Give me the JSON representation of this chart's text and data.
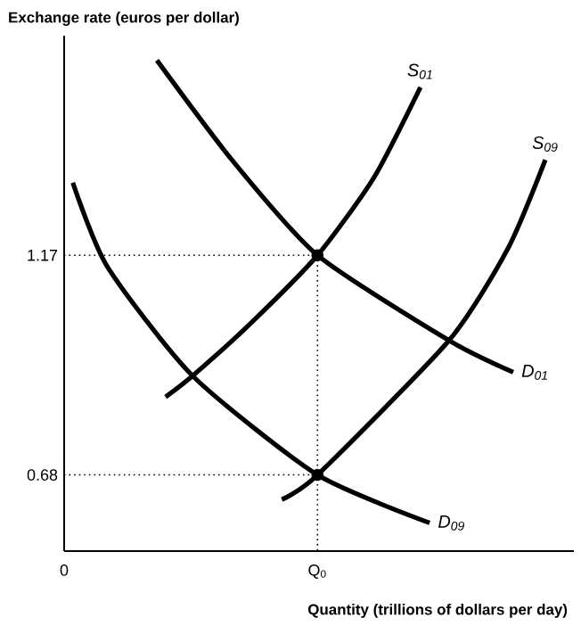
{
  "chart_data": {
    "type": "line",
    "xlabel": "Quantity (trillions of dollars per day)",
    "ylabel": "Exchange rate (euros per dollar)",
    "xlim": [
      0,
      1
    ],
    "ylim": [
      0.51,
      1.66
    ],
    "xticks": [
      {
        "value": 0,
        "label": "0"
      },
      {
        "value": 0.497,
        "label": "Q$_{0}$"
      }
    ],
    "yticks": [
      0.68,
      1.17
    ],
    "series": [
      {
        "name": "S$_{01}$",
        "color": "#000000",
        "x": [
          0.199,
          0.252,
          0.364,
          0.497,
          0.608,
          0.699
        ],
        "values": [
          0.854,
          0.901,
          1.016,
          1.17,
          1.344,
          1.545
        ]
      },
      {
        "name": "S$_{09}$",
        "color": "#000000",
        "x": [
          0.427,
          0.497,
          0.755,
          0.871,
          0.944
        ],
        "values": [
          0.625,
          0.68,
          0.98,
          1.186,
          1.383
        ]
      },
      {
        "name": "D$_{01}$",
        "color": "#000000",
        "x": [
          0.182,
          0.329,
          0.497,
          0.755,
          0.881
        ],
        "values": [
          1.605,
          1.383,
          1.17,
          0.98,
          0.909
        ]
      },
      {
        "name": "D$_{09}$",
        "color": "#000000",
        "x": [
          0.017,
          0.084,
          0.252,
          0.497,
          0.717
        ],
        "values": [
          1.332,
          1.146,
          0.901,
          0.68,
          0.573
        ]
      },
      {
        "color": "#000000",
        "line_style": "dotted",
        "x": [
          0,
          0.497
        ],
        "values": [
          1.17,
          1.17
        ]
      },
      {
        "color": "#000000",
        "line_style": "dotted",
        "x": [
          0,
          0.497
        ],
        "values": [
          0.68,
          0.68
        ]
      },
      {
        "color": "#000000",
        "line_style": "dotted",
        "x": [
          0.497,
          0.497
        ],
        "values": [
          1.17,
          0.51
        ]
      },
      {
        "type": "scatter",
        "marker": "circle",
        "color": "#000000",
        "x": [
          0.497,
          0.497
        ],
        "values": [
          1.17,
          0.68
        ]
      }
    ]
  }
}
